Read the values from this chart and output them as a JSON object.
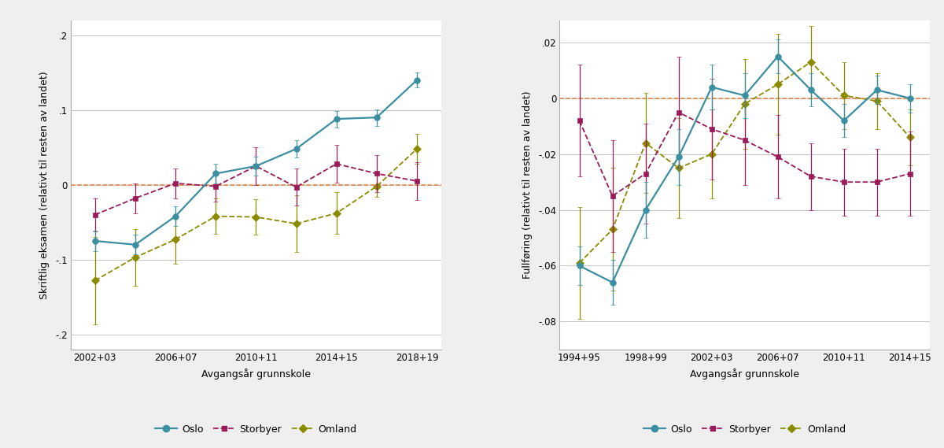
{
  "left": {
    "xlabel": "Avgangsår grunnskole",
    "ylabel": "Skriftlig eksamen (relativt til resten av landet)",
    "ylim": [
      -0.22,
      0.22
    ],
    "yticks": [
      -0.2,
      -0.1,
      0.0,
      0.1,
      0.2
    ],
    "ytick_labels": [
      "-.2",
      "-.1",
      "0",
      ".1",
      ".2"
    ],
    "xtick_labels": [
      "2002+03",
      "2006+07",
      "2010+11",
      "2014+15",
      "2018+19"
    ],
    "oslo": {
      "x": [
        1,
        2,
        3,
        4,
        5,
        6,
        7,
        8,
        9
      ],
      "y": [
        -0.075,
        -0.08,
        -0.042,
        0.015,
        0.025,
        0.048,
        0.088,
        0.09,
        0.14
      ],
      "yerr_low": [
        0.014,
        0.013,
        0.013,
        0.013,
        0.013,
        0.012,
        0.011,
        0.011,
        0.01
      ],
      "yerr_high": [
        0.014,
        0.013,
        0.013,
        0.013,
        0.013,
        0.012,
        0.011,
        0.011,
        0.01
      ]
    },
    "storbyer": {
      "x": [
        1,
        2,
        3,
        4,
        5,
        6,
        7,
        8,
        9
      ],
      "y": [
        -0.04,
        -0.018,
        0.002,
        -0.002,
        0.025,
        -0.003,
        0.028,
        0.015,
        0.005
      ],
      "yerr_low": [
        0.022,
        0.02,
        0.02,
        0.02,
        0.025,
        0.025,
        0.025,
        0.025,
        0.025
      ],
      "yerr_high": [
        0.022,
        0.02,
        0.02,
        0.02,
        0.025,
        0.025,
        0.025,
        0.025,
        0.025
      ]
    },
    "omland": {
      "x": [
        1,
        2,
        3,
        4,
        5,
        6,
        7,
        8,
        9
      ],
      "y": [
        -0.128,
        -0.097,
        -0.073,
        -0.042,
        -0.043,
        -0.052,
        -0.038,
        -0.002,
        0.048
      ],
      "yerr_low": [
        0.058,
        0.038,
        0.032,
        0.024,
        0.024,
        0.038,
        0.028,
        0.014,
        0.02
      ],
      "yerr_high": [
        0.058,
        0.038,
        0.032,
        0.024,
        0.024,
        0.038,
        0.028,
        0.014,
        0.02
      ]
    },
    "xtick_positions": [
      1,
      3,
      5,
      7,
      9
    ]
  },
  "right": {
    "xlabel": "Avgangsår grunnskole",
    "ylabel": "Fullføring (relativt til resten av landet)",
    "ylim": [
      -0.09,
      0.028
    ],
    "yticks": [
      -0.08,
      -0.06,
      -0.04,
      -0.02,
      0.0,
      0.02
    ],
    "ytick_labels": [
      "-.08",
      "-.06",
      "-.04",
      "-.02",
      "0",
      ".02"
    ],
    "xtick_labels": [
      "1994+95",
      "1998+99",
      "2002+03",
      "2006+07",
      "2010+11",
      "2014+15"
    ],
    "oslo": {
      "x": [
        1,
        2,
        3,
        4,
        5,
        6,
        7,
        8,
        9,
        10,
        11
      ],
      "y": [
        -0.06,
        -0.066,
        -0.04,
        -0.021,
        0.004,
        0.001,
        0.015,
        0.003,
        -0.008,
        0.003,
        0.0
      ],
      "yerr_low": [
        0.007,
        0.008,
        0.01,
        0.01,
        0.008,
        0.008,
        0.006,
        0.006,
        0.006,
        0.005,
        0.005
      ],
      "yerr_high": [
        0.007,
        0.008,
        0.01,
        0.01,
        0.008,
        0.008,
        0.006,
        0.006,
        0.006,
        0.005,
        0.005
      ]
    },
    "storbyer": {
      "x": [
        1,
        2,
        3,
        4,
        5,
        6,
        7,
        8,
        9,
        10,
        11
      ],
      "y": [
        -0.008,
        -0.035,
        -0.027,
        -0.005,
        -0.011,
        -0.015,
        -0.021,
        -0.028,
        -0.03,
        -0.03,
        -0.027
      ],
      "yerr_low": [
        0.02,
        0.02,
        0.018,
        0.02,
        0.018,
        0.016,
        0.015,
        0.012,
        0.012,
        0.012,
        0.015
      ],
      "yerr_high": [
        0.02,
        0.02,
        0.018,
        0.02,
        0.018,
        0.016,
        0.015,
        0.012,
        0.012,
        0.012,
        0.015
      ]
    },
    "omland": {
      "x": [
        1,
        2,
        3,
        4,
        5,
        6,
        7,
        8,
        9,
        10,
        11
      ],
      "y": [
        -0.059,
        -0.047,
        -0.016,
        -0.025,
        -0.02,
        -0.002,
        0.005,
        0.013,
        0.001,
        -0.001,
        -0.014
      ],
      "yerr_low": [
        0.02,
        0.022,
        0.018,
        0.018,
        0.016,
        0.016,
        0.018,
        0.013,
        0.012,
        0.01,
        0.01
      ],
      "yerr_high": [
        0.02,
        0.022,
        0.018,
        0.018,
        0.016,
        0.016,
        0.018,
        0.013,
        0.012,
        0.01,
        0.01
      ]
    },
    "xtick_positions": [
      1,
      3,
      5,
      7,
      9,
      11
    ]
  },
  "oslo_color": "#3B8FA0",
  "storbyer_color": "#9B1B5A",
  "omland_color": "#8B8B00",
  "ref_color": "#E08040",
  "bg_color": "#FFFFFF",
  "outer_bg": "#EFEFEF",
  "label_fontsize": 9,
  "tick_fontsize": 8.5
}
